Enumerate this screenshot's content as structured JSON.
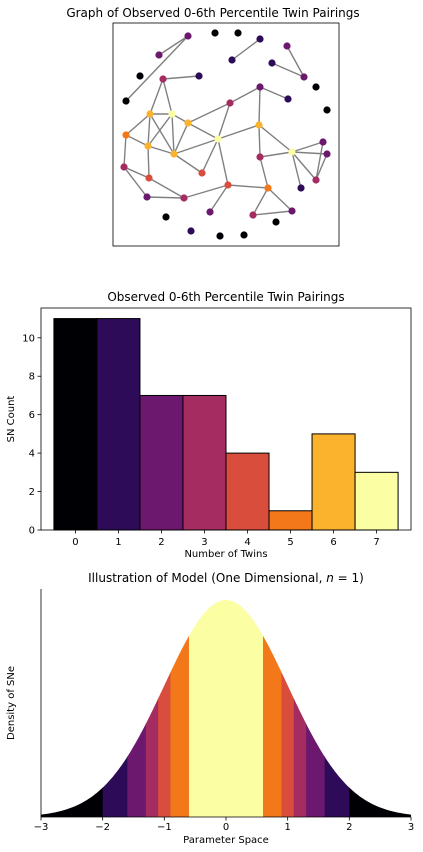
{
  "chart_data": [
    {
      "type": "network",
      "title": "Graph of Observed 0-6th Percentile Twin Pairings",
      "node_colors_legend": "colored by number of twins (inferno colormap)"
    },
    {
      "type": "bar",
      "title": "Observed 0-6th Percentile Twin Pairings",
      "xlabel": "Number of Twins",
      "ylabel": "SN Count",
      "categories": [
        "0",
        "1",
        "2",
        "3",
        "4",
        "5",
        "6",
        "7"
      ],
      "values": [
        11,
        11,
        7,
        7,
        4,
        1,
        5,
        3
      ],
      "colors": [
        "#000004",
        "#2d0b59",
        "#6b186e",
        "#a52c60",
        "#d94d3d",
        "#f37819",
        "#fbb32e",
        "#fcfea4"
      ],
      "ylim": [
        0,
        11.55
      ],
      "yticks": [
        "0",
        "2",
        "4",
        "6",
        "8",
        "10"
      ]
    },
    {
      "type": "area",
      "title_prefix": "Illustration of Model (One Dimensional, ",
      "title_math": "n",
      "title_suffix": " = 1)",
      "xlabel": "Parameter Space",
      "ylabel": "Density of SNe",
      "xlim": [
        -3,
        3
      ],
      "xticks": [
        "−3",
        "−2",
        "−1",
        "0",
        "1",
        "2",
        "3"
      ],
      "curve": "standard normal density",
      "bands": [
        {
          "range": [
            -3,
            -2
          ],
          "color": "#000004"
        },
        {
          "range": [
            -2,
            -1.6
          ],
          "color": "#2d0b59"
        },
        {
          "range": [
            -1.6,
            -1.3
          ],
          "color": "#6b186e"
        },
        {
          "range": [
            -1.3,
            -1.1
          ],
          "color": "#a52c60"
        },
        {
          "range": [
            -1.1,
            -0.9
          ],
          "color": "#d94d3d"
        },
        {
          "range": [
            -0.9,
            -0.6
          ],
          "color": "#f37819"
        },
        {
          "range": [
            -0.6,
            0.6
          ],
          "color": "#fcfea4"
        },
        {
          "range": [
            0.6,
            0.9
          ],
          "color": "#f37819"
        },
        {
          "range": [
            0.9,
            1.1
          ],
          "color": "#d94d3d"
        },
        {
          "range": [
            1.1,
            1.3
          ],
          "color": "#a52c60"
        },
        {
          "range": [
            1.3,
            1.6
          ],
          "color": "#6b186e"
        },
        {
          "range": [
            1.6,
            2
          ],
          "color": "#2d0b59"
        },
        {
          "range": [
            2,
            3
          ],
          "color": "#000004"
        }
      ]
    }
  ]
}
